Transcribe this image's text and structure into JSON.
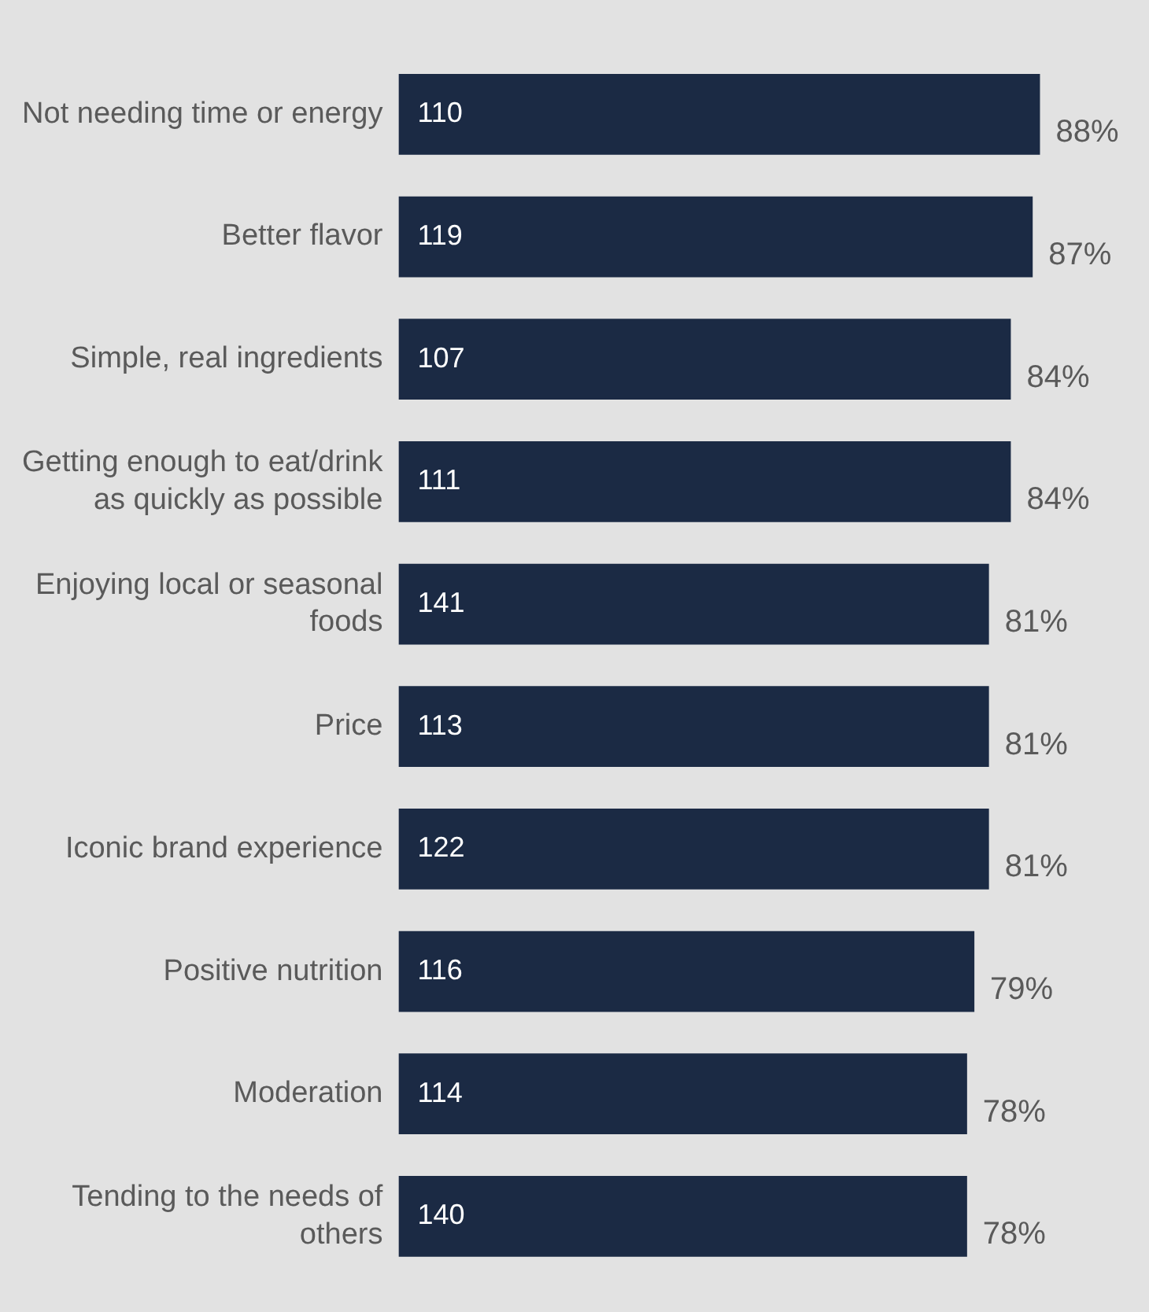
{
  "chart_data": {
    "type": "bar",
    "orientation": "horizontal",
    "categories": [
      "Not needing time or energy",
      "Better flavor",
      "Simple, real ingredients",
      "Getting enough to eat/drink as quickly as possible",
      "Enjoying local or seasonal foods",
      "Price",
      "Iconic brand experience",
      "Positive nutrition",
      "Moderation",
      "Tending to the needs of others"
    ],
    "values": [
      88,
      87,
      84,
      84,
      81,
      81,
      81,
      79,
      78,
      78
    ],
    "value_labels": [
      "88%",
      "87%",
      "84%",
      "84%",
      "81%",
      "81%",
      "81%",
      "79%",
      "78%",
      "78%"
    ],
    "color": "#1b2a44",
    "tick_labels": "y",
    "legend": false,
    "annotations": [
      "110",
      "119",
      "107",
      "111",
      "141",
      "113",
      "122",
      "116",
      "114",
      "140"
    ]
  }
}
